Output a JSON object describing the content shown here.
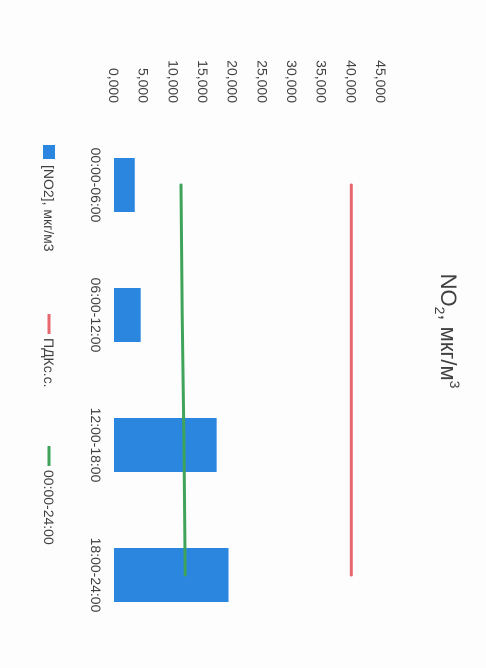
{
  "chart_data": {
    "type": "bar",
    "title": "NO",
    "title_sub": "2",
    "title_rest": ", мкг/м",
    "title_sup": "3",
    "categories": [
      "00:00-06:00",
      "06:00-12:00",
      "12:00-18:00",
      "18:00-24:00"
    ],
    "series": [
      {
        "name": "[NO2], мкг/м3",
        "type": "bar",
        "values": [
          3.5,
          4.5,
          17.3,
          19.3
        ],
        "color": "#2b86e0"
      },
      {
        "name": "ПДКс.с.",
        "type": "line",
        "values": [
          40,
          40,
          40,
          40
        ],
        "color": "#e8686f"
      },
      {
        "name": "00:00-24:00",
        "type": "line",
        "values": [
          11.3,
          11.5,
          11.8,
          12.0
        ],
        "color": "#3fa35a"
      }
    ],
    "y_ticks": [
      "0,000",
      "5,000",
      "10,000",
      "15,000",
      "20,000",
      "25,000",
      "30,000",
      "35,000",
      "40,000",
      "45,000"
    ],
    "ylim": [
      0,
      45
    ],
    "grid": false,
    "legend_position": "bottom",
    "orientation": "rotated-90"
  }
}
